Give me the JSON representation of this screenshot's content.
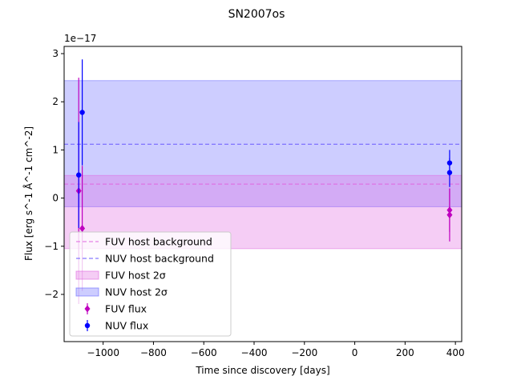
{
  "chart_data": {
    "type": "scatter",
    "title": "SN2007os",
    "xlabel": "Time since discovery [days]",
    "ylabel": "Flux [erg s^-1 Å^-1 cm^-2]",
    "y_offset_label": "1e−17",
    "y_multiplier": 1e-17,
    "xlim": [
      -1155,
      425
    ],
    "ylim": [
      -2.98,
      3.15
    ],
    "xticks": [
      {
        "value": -1000,
        "label": "−1000"
      },
      {
        "value": -800,
        "label": "−800"
      },
      {
        "value": -600,
        "label": "−600"
      },
      {
        "value": -400,
        "label": "−400"
      },
      {
        "value": -200,
        "label": "−200"
      },
      {
        "value": 0,
        "label": "0"
      },
      {
        "value": 200,
        "label": "200"
      },
      {
        "value": 400,
        "label": "400"
      }
    ],
    "yticks": [
      {
        "value": -2,
        "label": "−2"
      },
      {
        "value": -1,
        "label": "−1"
      },
      {
        "value": 0,
        "label": "0"
      },
      {
        "value": 1,
        "label": "1"
      },
      {
        "value": 2,
        "label": "2"
      },
      {
        "value": 3,
        "label": "3"
      }
    ],
    "colors": {
      "fuv": "#bf00bf",
      "nuv": "#0000ff",
      "fuv_band": "#e066e0",
      "nuv_band": "#6666ff",
      "fuv_line": "#e066e0",
      "nuv_line": "#6a5aff"
    },
    "fuv_host_background": 0.29,
    "fuv_host_band": [
      -1.05,
      0.47
    ],
    "nuv_host_background": 1.12,
    "nuv_host_band": [
      -0.18,
      2.44
    ],
    "series": [
      {
        "name": "FUV flux",
        "marker": "diamond",
        "points": [
          {
            "x": -1097,
            "y": 0.15,
            "err": 2.35
          },
          {
            "x": -1083,
            "y": -0.63,
            "err": 1.3
          },
          {
            "x": 377,
            "y": -0.25,
            "err": 0.45
          },
          {
            "x": 377,
            "y": -0.35,
            "err": 0.55
          }
        ]
      },
      {
        "name": "NUV flux",
        "marker": "circle",
        "points": [
          {
            "x": -1097,
            "y": 0.48,
            "err": 1.1
          },
          {
            "x": -1083,
            "y": 1.78,
            "err": 1.1
          },
          {
            "x": 377,
            "y": 0.73,
            "err": 0.27
          },
          {
            "x": 377,
            "y": 0.53,
            "err": 0.3
          }
        ]
      }
    ],
    "legend": {
      "position": "lower-left",
      "entries": [
        {
          "label": "FUV host background",
          "kind": "dashed-line",
          "key": "fuv_line"
        },
        {
          "label": "NUV host background",
          "kind": "dashed-line",
          "key": "nuv_line"
        },
        {
          "label": "FUV host 2σ",
          "kind": "patch",
          "key": "fuv_band"
        },
        {
          "label": "NUV host 2σ",
          "kind": "patch",
          "key": "nuv_band"
        },
        {
          "label": "FUV flux",
          "kind": "diamond",
          "key": "fuv"
        },
        {
          "label": "NUV flux",
          "kind": "circle",
          "key": "nuv"
        }
      ]
    }
  }
}
